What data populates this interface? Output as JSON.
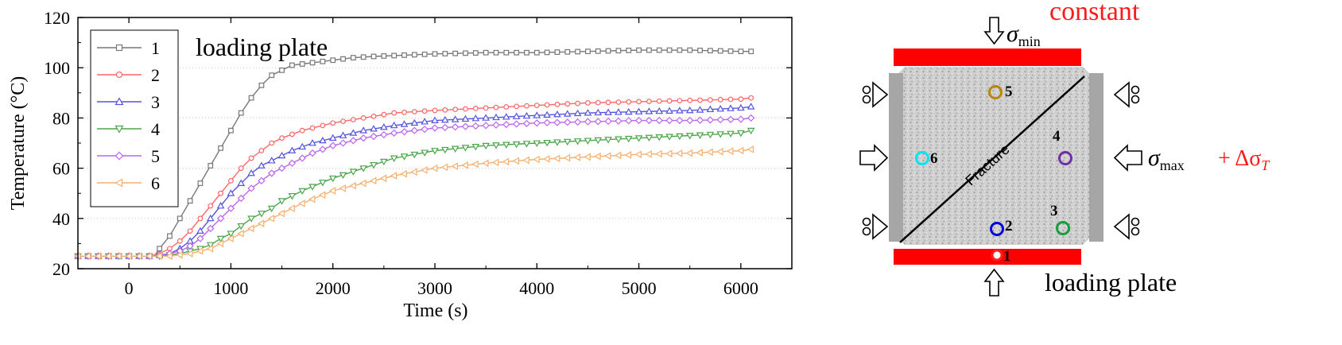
{
  "chart_data": {
    "type": "line",
    "xlabel": "Time (s)",
    "ylabel": "Temperature (°C)",
    "xlim": [
      -500,
      6500
    ],
    "ylim": [
      20,
      120
    ],
    "xticks": [
      0,
      1000,
      2000,
      3000,
      4000,
      5000,
      6000
    ],
    "yticks": [
      20,
      40,
      60,
      80,
      100,
      120
    ],
    "grid": "horizontal dotted",
    "legend_position": "top-left",
    "annotation": "loading plate",
    "series": [
      {
        "name": "1",
        "color": "#777777",
        "marker": "square",
        "x": [
          -500,
          0,
          250,
          300,
          400,
          500,
          600,
          700,
          800,
          900,
          1000,
          1100,
          1200,
          1300,
          1400,
          1500,
          1600,
          1800,
          2000,
          2200,
          2400,
          2700,
          3000,
          3500,
          4000,
          4500,
          5000,
          5500,
          6000,
          6100
        ],
        "y": [
          25,
          25,
          25,
          28,
          33,
          40,
          47,
          54,
          61,
          68,
          75,
          82,
          88,
          93,
          97,
          99,
          101,
          102,
          103,
          104,
          104.5,
          105,
          105.5,
          106,
          106,
          106.5,
          107,
          107,
          106.5,
          106.5
        ]
      },
      {
        "name": "2",
        "color": "#ff6666",
        "marker": "circle",
        "x": [
          -500,
          0,
          200,
          300,
          400,
          500,
          600,
          700,
          800,
          900,
          1000,
          1100,
          1200,
          1300,
          1400,
          1500,
          1700,
          2000,
          2300,
          2600,
          3000,
          3500,
          4000,
          4500,
          5000,
          5500,
          6000,
          6100
        ],
        "y": [
          25,
          25,
          25,
          26,
          28,
          31,
          35,
          40,
          45,
          50,
          55,
          60,
          64,
          67,
          70,
          72,
          75,
          78,
          80,
          82,
          83,
          84,
          85,
          86,
          86.5,
          87,
          87.5,
          88
        ]
      },
      {
        "name": "3",
        "color": "#5555dd",
        "marker": "triangle-up",
        "x": [
          -500,
          0,
          250,
          400,
          500,
          600,
          700,
          800,
          900,
          1000,
          1100,
          1200,
          1300,
          1400,
          1600,
          1800,
          2000,
          2300,
          2600,
          3000,
          3500,
          4000,
          4500,
          5000,
          5500,
          6000,
          6100
        ],
        "y": [
          25,
          25,
          25,
          26,
          28,
          31,
          35,
          40,
          45,
          50,
          54,
          58,
          61,
          63,
          67,
          70,
          72,
          75,
          77,
          79,
          80,
          81,
          82,
          82.5,
          83,
          84,
          84.5
        ]
      },
      {
        "name": "4",
        "color": "#4ca64c",
        "marker": "triangle-down",
        "x": [
          -500,
          0,
          300,
          400,
          500,
          600,
          700,
          800,
          900,
          1000,
          1100,
          1200,
          1300,
          1400,
          1500,
          1700,
          2000,
          2300,
          2600,
          3000,
          3500,
          4000,
          4500,
          5000,
          5500,
          6000,
          6100
        ],
        "y": [
          25,
          25,
          25,
          25.5,
          26,
          27,
          28,
          29.5,
          32,
          34,
          37,
          40,
          42,
          44,
          47,
          51,
          56,
          60,
          64,
          67,
          69,
          70,
          71,
          72,
          73,
          74,
          75
        ]
      },
      {
        "name": "5",
        "color": "#bb66ee",
        "marker": "diamond",
        "x": [
          -500,
          0,
          250,
          400,
          500,
          600,
          700,
          800,
          900,
          1000,
          1100,
          1200,
          1300,
          1400,
          1600,
          1800,
          2000,
          2300,
          2600,
          3000,
          3500,
          4000,
          4500,
          5000,
          5500,
          6000,
          6100
        ],
        "y": [
          25,
          25,
          25,
          26,
          27,
          29,
          32,
          36,
          40,
          44,
          48,
          52,
          55,
          58,
          62,
          66,
          69,
          72,
          74,
          76,
          77,
          78,
          78.5,
          79,
          79,
          79.5,
          80
        ]
      },
      {
        "name": "6",
        "color": "#f5b070",
        "marker": "triangle-left",
        "x": [
          -500,
          0,
          300,
          400,
          500,
          600,
          700,
          800,
          900,
          1000,
          1100,
          1200,
          1300,
          1500,
          1700,
          2000,
          2300,
          2600,
          3000,
          3500,
          4000,
          4500,
          5000,
          5500,
          6000,
          6100
        ],
        "y": [
          25,
          25,
          25,
          25,
          25.5,
          26,
          27,
          28,
          30,
          32,
          34,
          36,
          38,
          42,
          46,
          51,
          54,
          57,
          60,
          62,
          63.5,
          64.5,
          65.5,
          66,
          67,
          67.5
        ]
      }
    ]
  },
  "diagram": {
    "top_label": "constant",
    "sigma_min": "σ",
    "sigma_min_sub": "min",
    "sigma_max": "σ",
    "sigma_max_sub": "max",
    "delta_term": "+ Δσ",
    "delta_sub": "T",
    "fracture_label": "Fracture",
    "bottom_label": "loading plate",
    "points": [
      {
        "label": "1",
        "color": "#ff2020"
      },
      {
        "label": "2",
        "color": "#0000dd"
      },
      {
        "label": "3",
        "color": "#1a9c3c"
      },
      {
        "label": "4",
        "color": "#7030a0"
      },
      {
        "label": "5",
        "color": "#b8860b"
      },
      {
        "label": "6",
        "color": "#00e5ee"
      }
    ]
  }
}
